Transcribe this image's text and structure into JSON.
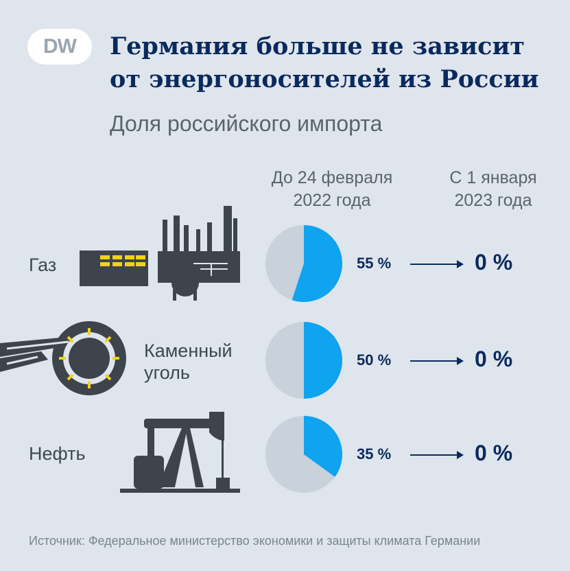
{
  "logo": {
    "text": "DW"
  },
  "title_line1": "Германия больше не зависит",
  "title_line2": "от энергоносителей из России",
  "subtitle": "Доля российского импорта",
  "columns": {
    "before_line1": "До 24 февраля",
    "before_line2": "2022 года",
    "after_line1": "С 1 января",
    "after_line2": "2023 года"
  },
  "source": "Источник: Федеральное министерство экономики и защиты климата Германии",
  "colors": {
    "title": "#0a2a5e",
    "russian_share": "#0fa3f0",
    "other_share": "#c9d1da",
    "background": "#dfe5ec",
    "icon": "#3d444b",
    "icon_highlight": "#f2d21c"
  },
  "icons": [
    "gas-plant-icon",
    "coal-excavator-icon",
    "oil-pump-icon"
  ],
  "chart_data": {
    "type": "pie",
    "rows": [
      {
        "label": "Газ",
        "value": 55,
        "value_label": "55 %",
        "after_value": 0,
        "after_label": "0 %"
      },
      {
        "label": "Каменный уголь",
        "label_line1": "Каменный",
        "label_line2": "уголь",
        "value": 50,
        "value_label": "50 %",
        "after_value": 0,
        "after_label": "0 %"
      },
      {
        "label": "Нефть",
        "value": 35,
        "value_label": "35 %",
        "after_value": 0,
        "after_label": "0 %"
      }
    ],
    "unit": "%"
  }
}
